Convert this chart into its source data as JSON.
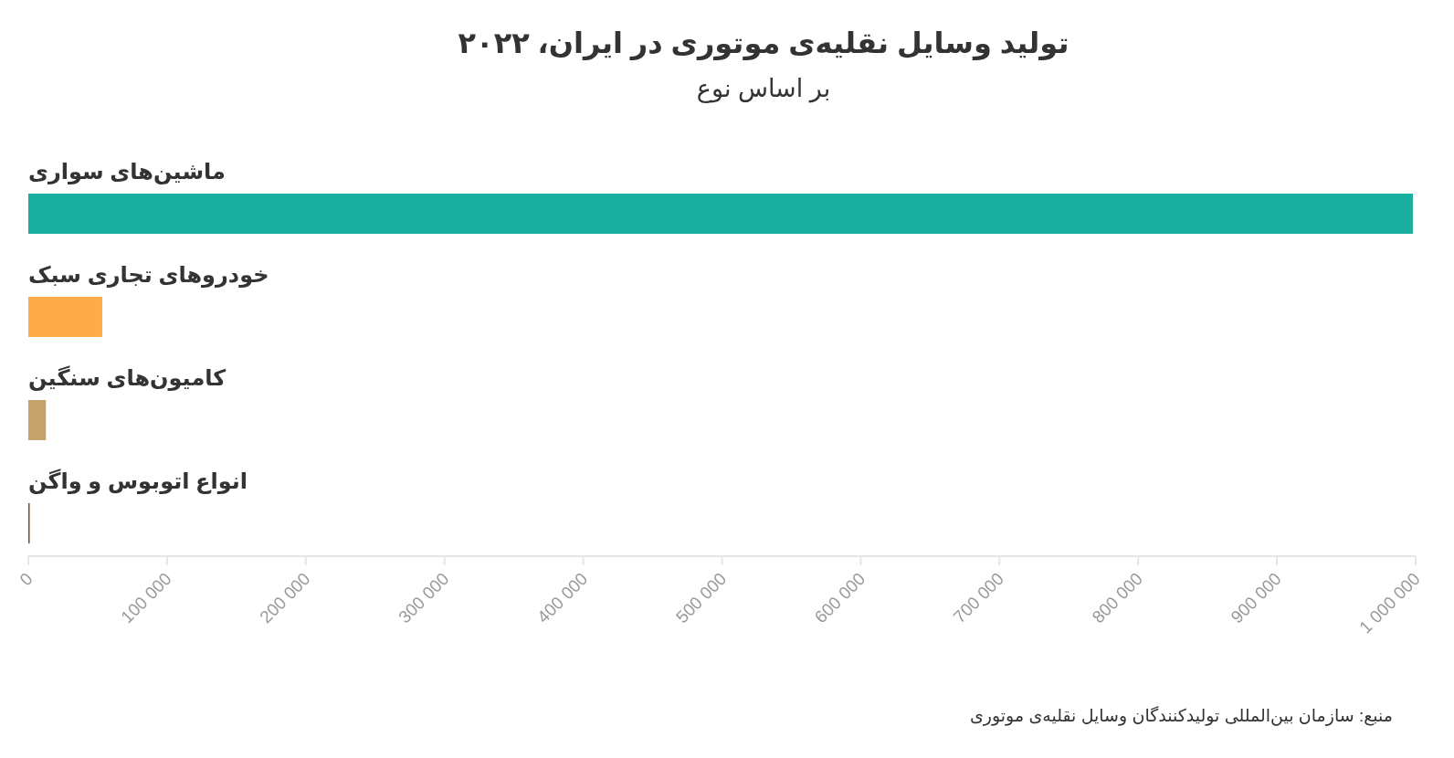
{
  "chart_data": {
    "type": "bar",
    "orientation": "horizontal",
    "title": "تولید وسایل نقلیه‌ی موتوری در ایران، ۲۰۲۲",
    "subtitle": "بر اساس نوع",
    "categories": [
      "ماشین‌های سواری",
      "خودروهای تجاری سبک",
      "کامیون‌های سنگین",
      "انواع اتوبوس و واگن"
    ],
    "values": [
      998000,
      53300,
      12700,
      1000
    ],
    "colors": [
      "#1aae9f",
      "#ffab4a",
      "#c4a46b",
      "#7b4b3a"
    ],
    "xlim": [
      0,
      1000000
    ],
    "xticks": [
      0,
      {
        "value": 100000,
        "label": "100 000"
      },
      {
        "value": 200000,
        "label": "200 000"
      },
      {
        "value": 300000,
        "label": "300 000"
      },
      {
        "value": 400000,
        "label": "400 000"
      },
      {
        "value": 500000,
        "label": "500 000"
      },
      {
        "value": 600000,
        "label": "600 000"
      },
      {
        "value": 700000,
        "label": "700 000"
      },
      {
        "value": 800000,
        "label": "800 000"
      },
      {
        "value": 900000,
        "label": "900 000"
      },
      {
        "value": 1000000,
        "label": "1 000 000"
      }
    ],
    "grid": false,
    "annotations": [
      "منبع: سازمان بین‌المللی تولیدکنندگان وسایل نقلیه‌ی موتوری"
    ]
  }
}
